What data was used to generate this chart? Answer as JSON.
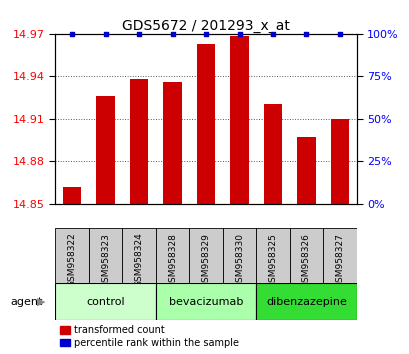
{
  "title": "GDS5672 / 201293_x_at",
  "samples": [
    "GSM958322",
    "GSM958323",
    "GSM958324",
    "GSM958328",
    "GSM958329",
    "GSM958330",
    "GSM958325",
    "GSM958326",
    "GSM958327"
  ],
  "values": [
    14.862,
    14.926,
    14.938,
    14.936,
    14.963,
    14.968,
    14.92,
    14.897,
    14.91
  ],
  "percentiles": [
    100,
    100,
    100,
    100,
    100,
    100,
    100,
    100,
    100
  ],
  "ymin": 14.85,
  "ymax": 14.97,
  "yticks": [
    14.85,
    14.88,
    14.91,
    14.94,
    14.97
  ],
  "right_yticks": [
    0,
    25,
    50,
    75,
    100
  ],
  "bar_color": "#cc0000",
  "dot_color": "#0000cc",
  "groups": [
    {
      "label": "control",
      "start": 0,
      "end": 3,
      "color": "#ccffcc"
    },
    {
      "label": "bevacizumab",
      "start": 3,
      "end": 6,
      "color": "#aaffaa"
    },
    {
      "label": "dibenzazepine",
      "start": 6,
      "end": 9,
      "color": "#33dd33"
    }
  ],
  "background_color": "#ffffff",
  "sample_bg": "#cccccc",
  "legend_red_label": "transformed count",
  "legend_blue_label": "percentile rank within the sample"
}
